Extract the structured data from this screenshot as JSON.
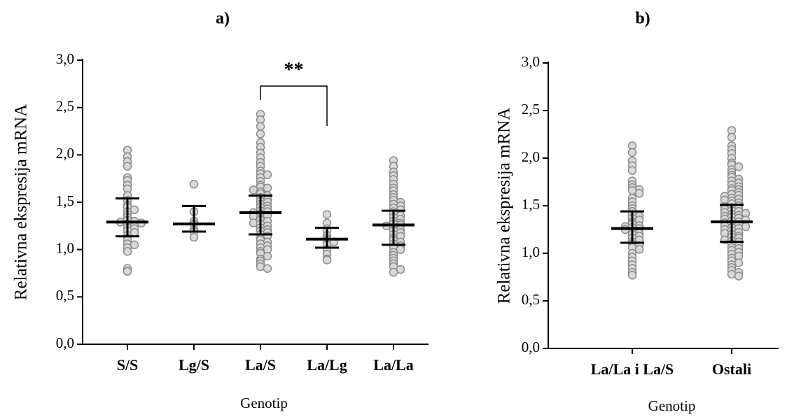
{
  "chart_data": [
    {
      "type": "dot",
      "title": "a)",
      "ylabel": "Relativna ekspresija mRNA",
      "xlabel": "Genotip",
      "annotation": "**",
      "categories": [
        "S/S",
        "Lg/S",
        "La/S",
        "La/Lg",
        "La/La"
      ],
      "values": [
        [
          2.05,
          1.98,
          1.93,
          1.88,
          1.76,
          1.73,
          1.68,
          1.64,
          1.57,
          1.52,
          1.47,
          1.45,
          1.42,
          1.4,
          1.37,
          1.34,
          1.31,
          1.3,
          1.29,
          1.28,
          1.27,
          1.25,
          1.23,
          1.22,
          1.2,
          1.18,
          1.15,
          1.12,
          1.1,
          1.06,
          1.05,
          1.02,
          0.98,
          0.8,
          0.77
        ],
        [
          1.69,
          1.4,
          1.3,
          1.27,
          1.21,
          1.19,
          1.13
        ],
        [
          2.43,
          2.37,
          2.3,
          2.22,
          2.13,
          2.08,
          2.02,
          1.97,
          1.92,
          1.88,
          1.83,
          1.8,
          1.79,
          1.76,
          1.72,
          1.68,
          1.66,
          1.65,
          1.63,
          1.61,
          1.59,
          1.57,
          1.55,
          1.53,
          1.51,
          1.5,
          1.48,
          1.46,
          1.45,
          1.43,
          1.41,
          1.4,
          1.39,
          1.38,
          1.36,
          1.35,
          1.33,
          1.31,
          1.3,
          1.28,
          1.27,
          1.25,
          1.23,
          1.21,
          1.2,
          1.18,
          1.16,
          1.14,
          1.12,
          1.1,
          1.08,
          1.06,
          1.04,
          1.02,
          1.0,
          0.98,
          0.96,
          0.93,
          0.9,
          0.88,
          0.85,
          0.82,
          0.8
        ],
        [
          1.37,
          1.28,
          1.22,
          1.2,
          1.15,
          1.12,
          1.1,
          1.08,
          1.05,
          1.0,
          0.95,
          0.9,
          0.89
        ],
        [
          1.94,
          1.88,
          1.82,
          1.78,
          1.74,
          1.69,
          1.65,
          1.62,
          1.58,
          1.55,
          1.52,
          1.5,
          1.48,
          1.46,
          1.44,
          1.42,
          1.4,
          1.38,
          1.36,
          1.34,
          1.32,
          1.3,
          1.28,
          1.27,
          1.26,
          1.25,
          1.23,
          1.21,
          1.2,
          1.18,
          1.16,
          1.14,
          1.12,
          1.1,
          1.08,
          1.06,
          1.04,
          1.02,
          1.0,
          0.97,
          0.94,
          0.91,
          0.88,
          0.85,
          0.82,
          0.79,
          0.76
        ]
      ],
      "median": [
        1.29,
        1.27,
        1.39,
        1.11,
        1.26
      ],
      "lower": [
        1.14,
        1.19,
        1.16,
        1.02,
        1.05
      ],
      "upper": [
        1.54,
        1.46,
        1.57,
        1.23,
        1.41
      ],
      "color": "#d9d9d9",
      "ylim": [
        0,
        3
      ],
      "yticks": [
        {
          "value": 0,
          "label": "0,0"
        },
        {
          "value": 0.5,
          "label": "0,5"
        },
        {
          "value": 1,
          "label": "1,0"
        },
        {
          "value": 1.5,
          "label": "1,5"
        },
        {
          "value": 2,
          "label": "2,0"
        },
        {
          "value": 2.5,
          "label": "2,5"
        },
        {
          "value": 3,
          "label": "3,0"
        }
      ]
    },
    {
      "type": "dot",
      "title": "b)",
      "ylabel": "Relativna ekspresija mRNA",
      "xlabel": "Genotip",
      "categories": [
        "La/La i La/S",
        "Ostali"
      ],
      "values": [
        [
          2.13,
          2.06,
          1.97,
          1.92,
          1.87,
          1.76,
          1.72,
          1.69,
          1.67,
          1.66,
          1.63,
          1.58,
          1.54,
          1.5,
          1.47,
          1.44,
          1.41,
          1.39,
          1.37,
          1.35,
          1.33,
          1.31,
          1.29,
          1.28,
          1.27,
          1.26,
          1.25,
          1.23,
          1.21,
          1.2,
          1.18,
          1.16,
          1.14,
          1.12,
          1.1,
          1.08,
          1.06,
          1.04,
          1.0,
          0.96,
          0.92,
          0.88,
          0.84,
          0.8,
          0.77
        ],
        [
          2.29,
          2.22,
          2.13,
          2.09,
          2.05,
          2.0,
          1.95,
          1.93,
          1.91,
          1.88,
          1.85,
          1.82,
          1.8,
          1.78,
          1.76,
          1.74,
          1.72,
          1.7,
          1.68,
          1.67,
          1.66,
          1.64,
          1.62,
          1.61,
          1.6,
          1.58,
          1.57,
          1.56,
          1.55,
          1.53,
          1.52,
          1.5,
          1.49,
          1.48,
          1.47,
          1.46,
          1.45,
          1.44,
          1.43,
          1.42,
          1.41,
          1.4,
          1.39,
          1.38,
          1.37,
          1.36,
          1.35,
          1.34,
          1.33,
          1.32,
          1.31,
          1.3,
          1.29,
          1.28,
          1.27,
          1.26,
          1.25,
          1.24,
          1.22,
          1.21,
          1.2,
          1.18,
          1.17,
          1.16,
          1.14,
          1.13,
          1.12,
          1.1,
          1.08,
          1.06,
          1.05,
          1.03,
          1.01,
          0.99,
          0.97,
          0.95,
          0.92,
          0.9,
          0.88,
          0.85,
          0.82,
          0.8,
          0.78,
          0.76
        ]
      ],
      "median": [
        1.26,
        1.33
      ],
      "lower": [
        1.11,
        1.12
      ],
      "upper": [
        1.44,
        1.51
      ],
      "color": "#d9d9d9",
      "ylim": [
        0,
        3
      ],
      "yticks": [
        {
          "value": 0,
          "label": "0,0"
        },
        {
          "value": 0.5,
          "label": "0,5"
        },
        {
          "value": 1,
          "label": "1,0"
        },
        {
          "value": 1.5,
          "label": "1,5"
        },
        {
          "value": 2,
          "label": "2,0"
        },
        {
          "value": 2.5,
          "label": "2,5"
        },
        {
          "value": 3,
          "label": "3,0"
        }
      ]
    }
  ]
}
